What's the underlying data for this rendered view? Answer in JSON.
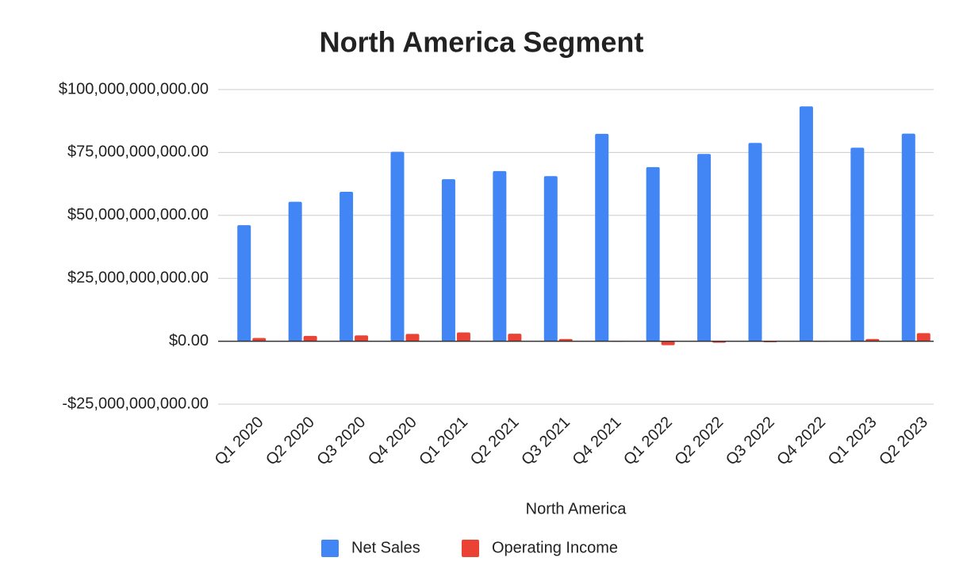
{
  "chart_data": {
    "type": "bar",
    "title": "North America Segment",
    "x_label": "North America",
    "categories": [
      "Q1 2020",
      "Q2 2020",
      "Q3 2020",
      "Q4 2020",
      "Q1 2021",
      "Q2 2021",
      "Q3 2021",
      "Q4 2021",
      "Q1 2022",
      "Q2 2022",
      "Q3 2022",
      "Q4 2022",
      "Q1 2023",
      "Q2 2023"
    ],
    "series": [
      {
        "name": "Net Sales",
        "color": "#4285f4",
        "values": [
          46100000000,
          55400000000,
          59400000000,
          75300000000,
          64400000000,
          67600000000,
          65600000000,
          82400000000,
          69200000000,
          74400000000,
          78800000000,
          93300000000,
          76900000000,
          82500000000
        ]
      },
      {
        "name": "Operating Income",
        "color": "#ea4335",
        "values": [
          1300000000,
          2100000000,
          2300000000,
          2900000000,
          3500000000,
          3000000000,
          900000000,
          -200000000,
          -1600000000,
          -600000000,
          -400000000,
          -200000000,
          900000000,
          3200000000
        ]
      }
    ],
    "ylim": [
      -25000000000,
      100000000000
    ],
    "yticks": [
      {
        "value": -25000000000,
        "label": "-$25,000,000,000.00"
      },
      {
        "value": 0,
        "label": "$0.00"
      },
      {
        "value": 25000000000,
        "label": "$25,000,000,000.00"
      },
      {
        "value": 50000000000,
        "label": "$50,000,000,000.00"
      },
      {
        "value": 75000000000,
        "label": "$75,000,000,000.00"
      },
      {
        "value": 100000000000,
        "label": "$100,000,000,000.00"
      }
    ],
    "grid": true,
    "legend": "bottom"
  }
}
